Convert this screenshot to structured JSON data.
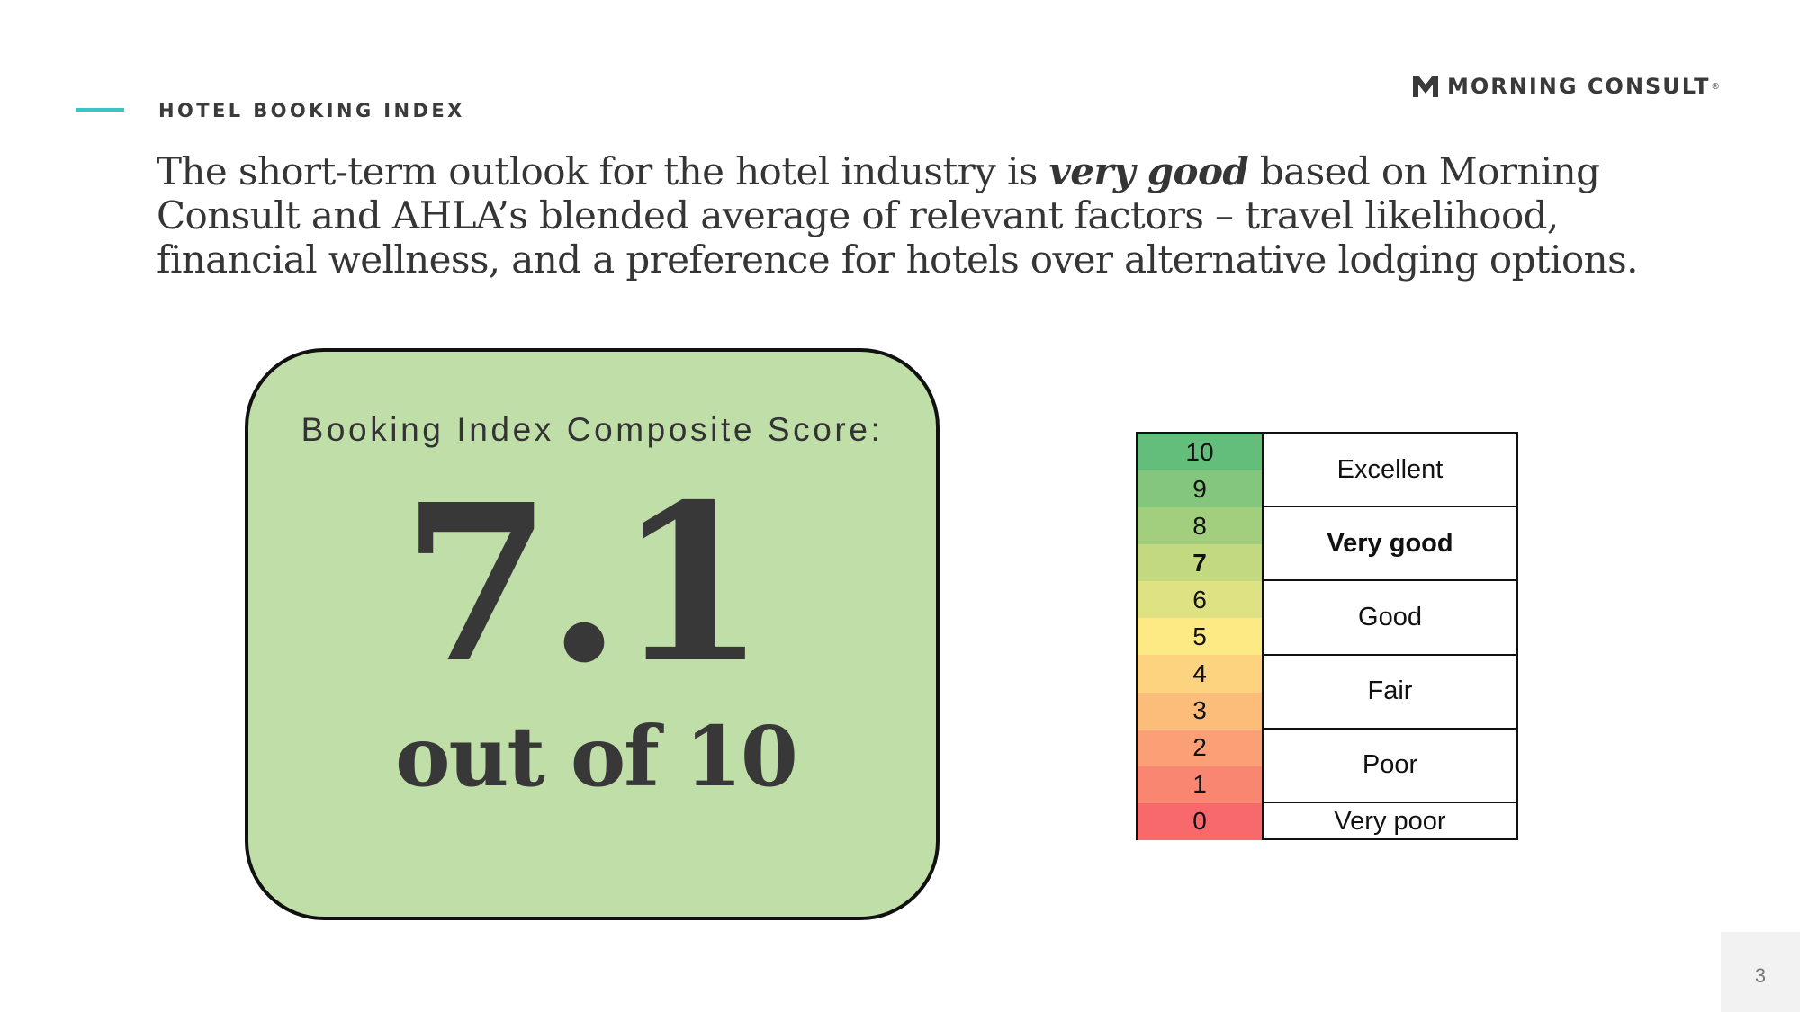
{
  "header": {
    "section_label": "HOTEL BOOKING INDEX",
    "brand": "MORNING CONSULT",
    "brand_mark": "®"
  },
  "headline": {
    "before": "The short-term outlook for the hotel industry is ",
    "emphasis": "very good",
    "after": " based on Morning Consult and AHLA’s blended average of relevant factors – travel likelihood, financial wellness, and a preference for hotels over alternative lodging options."
  },
  "score_card": {
    "title": "Booking Index Composite Score:",
    "value": "7.1",
    "suffix": "out of 10",
    "background": "#c0dea7"
  },
  "scale": {
    "current": 7,
    "levels": [
      {
        "value": 10,
        "label": "10",
        "color": "#63be7b"
      },
      {
        "value": 9,
        "label": "9",
        "color": "#84c67d"
      },
      {
        "value": 8,
        "label": "8",
        "color": "#a2cf7e"
      },
      {
        "value": 7,
        "label": "7",
        "color": "#c2d980"
      },
      {
        "value": 6,
        "label": "6",
        "color": "#dfe283"
      },
      {
        "value": 5,
        "label": "5",
        "color": "#feea84"
      },
      {
        "value": 4,
        "label": "4",
        "color": "#fdd380"
      },
      {
        "value": 3,
        "label": "3",
        "color": "#fcbd7b"
      },
      {
        "value": 2,
        "label": "2",
        "color": "#fba076"
      },
      {
        "value": 1,
        "label": "1",
        "color": "#f98670"
      },
      {
        "value": 0,
        "label": "0",
        "color": "#f8696b"
      }
    ],
    "ratings": [
      {
        "label": "Excellent",
        "span": 2
      },
      {
        "label": "Very good",
        "span": 2,
        "current": true
      },
      {
        "label": "Good",
        "span": 2
      },
      {
        "label": "Fair",
        "span": 2
      },
      {
        "label": "Poor",
        "span": 2
      },
      {
        "label": "Very poor",
        "span": 1
      }
    ]
  },
  "footer": {
    "page_number": "3"
  }
}
